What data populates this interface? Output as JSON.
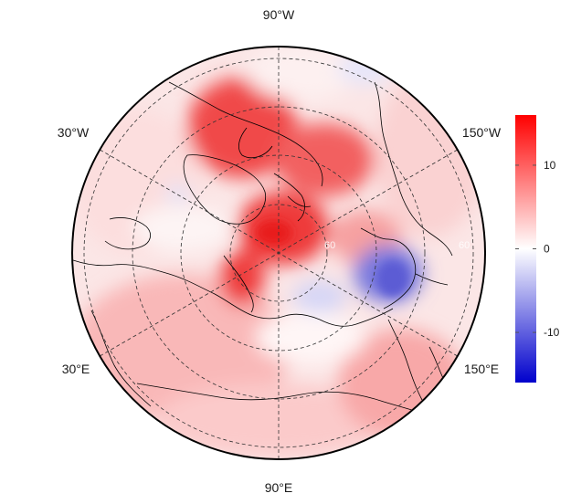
{
  "map": {
    "projection": "north-polar-stereographic",
    "longitude_labels": {
      "top": "90°W",
      "upper_left": "30°W",
      "upper_right": "150°W",
      "lower_left": "30°E",
      "lower_right": "150°E",
      "bottom": "90°E"
    },
    "latitude_labels": [
      "60",
      "60"
    ],
    "graticule": "dashed"
  },
  "colorbar": {
    "ticks": [
      {
        "value": 10,
        "label": "10"
      },
      {
        "value": 0,
        "label": "0"
      },
      {
        "value": -10,
        "label": "-10"
      }
    ],
    "range": [
      -16,
      16
    ],
    "colors": {
      "low": "#0000cc",
      "mid": "#ffffff",
      "high": "#ff0000"
    }
  },
  "colors": {
    "coastline": "#000000",
    "graticule": "#333333",
    "field_base": "#fbe0e0"
  }
}
